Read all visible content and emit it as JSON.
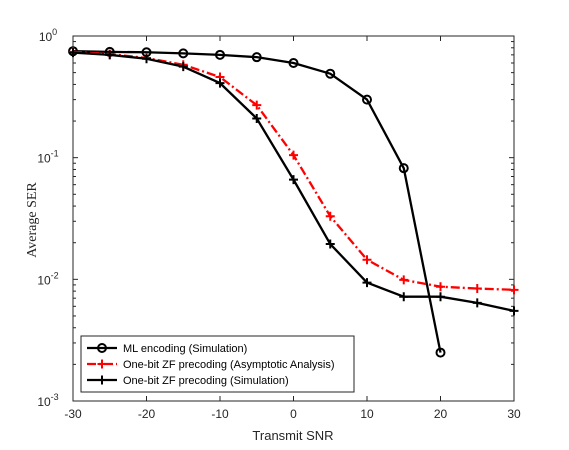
{
  "chart_data": {
    "type": "line",
    "xlabel": "Transmit SNR",
    "ylabel": "Average SER",
    "xlim": [
      -30,
      30
    ],
    "ylim": [
      0.001,
      1
    ],
    "yscale": "log",
    "xticks": [
      "-30",
      "-20",
      "-10",
      "0",
      "10",
      "20",
      "30"
    ],
    "xtick_values": [
      -30,
      -20,
      -10,
      0,
      10,
      20,
      30
    ],
    "yticks": [
      {
        "base": "10",
        "exp": "0",
        "value": 1
      },
      {
        "base": "10",
        "exp": "-1",
        "value": 0.1
      },
      {
        "base": "10",
        "exp": "-2",
        "value": 0.01
      },
      {
        "base": "10",
        "exp": "-3",
        "value": 0.001
      }
    ],
    "grid": false,
    "legend_position": "bottom-left",
    "series": [
      {
        "name": "ML encoding (Simulation)",
        "color": "#000000",
        "line_style": "solid",
        "marker": "circle",
        "x": [
          -30,
          -25,
          -20,
          -15,
          -10,
          -5,
          0,
          5,
          10,
          15,
          20
        ],
        "y": [
          0.75,
          0.74,
          0.735,
          0.72,
          0.7,
          0.67,
          0.6,
          0.49,
          0.3,
          0.082,
          0.0025
        ]
      },
      {
        "name": "One-bit ZF precoding (Asymptotic Analysis)",
        "color": "#ff0000",
        "line_style": "dashdot",
        "marker": "plus",
        "x": [
          -30,
          -25,
          -20,
          -15,
          -10,
          -5,
          0,
          5,
          10,
          15,
          20,
          25,
          30
        ],
        "y": [
          0.74,
          0.71,
          0.66,
          0.58,
          0.46,
          0.27,
          0.105,
          0.033,
          0.0145,
          0.0099,
          0.0087,
          0.0084,
          0.0082
        ]
      },
      {
        "name": "One-bit ZF precoding (Simulation)",
        "color": "#000000",
        "line_style": "solid",
        "marker": "plus",
        "x": [
          -30,
          -25,
          -20,
          -15,
          -10,
          -5,
          0,
          5,
          10,
          15,
          20,
          25,
          30
        ],
        "y": [
          0.73,
          0.7,
          0.65,
          0.56,
          0.41,
          0.21,
          0.066,
          0.0195,
          0.0094,
          0.0072,
          0.0072,
          0.0064,
          0.0055
        ]
      }
    ]
  }
}
